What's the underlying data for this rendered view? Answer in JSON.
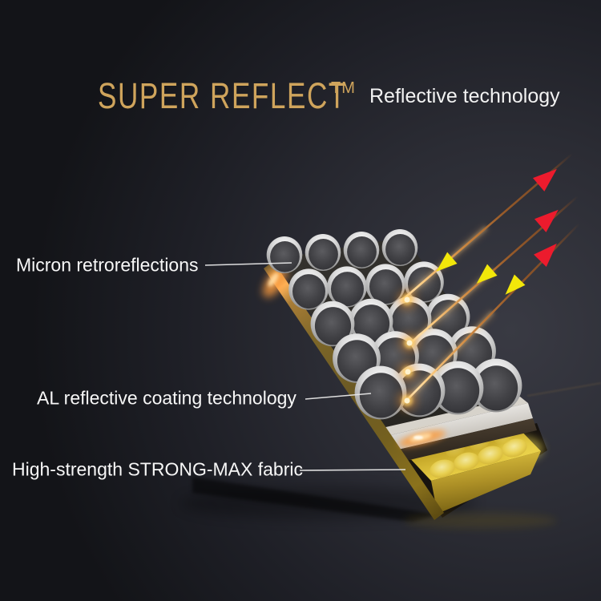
{
  "header": {
    "brand": "SUPER REFLECT",
    "trademark": "TM",
    "subtitle": "Reflective technology"
  },
  "callouts": [
    {
      "id": "micron-retroreflections",
      "text": "Micron retroreflections"
    },
    {
      "id": "al-reflective-coating",
      "text": "AL reflective coating technology"
    },
    {
      "id": "strong-max-fabric",
      "text": "High-strength STRONG-MAX fabric"
    }
  ],
  "diagram": {
    "sphere_grid": {
      "rows": 5,
      "cols": 4
    },
    "beam_count": 3,
    "arrow_colors": {
      "incoming": "#f2e70a",
      "reflected": "#ec1b2d"
    },
    "colors": {
      "background": "#1b1c22",
      "title_gold": "#cfa45c",
      "label_text": "#f7f7f7",
      "fabric_gold": "#e6cb43",
      "plate_edge_gold": "#9a7a38",
      "coating_white": "#f5f4f2",
      "sphere_body": "#46464a",
      "sphere_rim": "#dcdcdc",
      "beam_orange": "#d08a42"
    }
  }
}
